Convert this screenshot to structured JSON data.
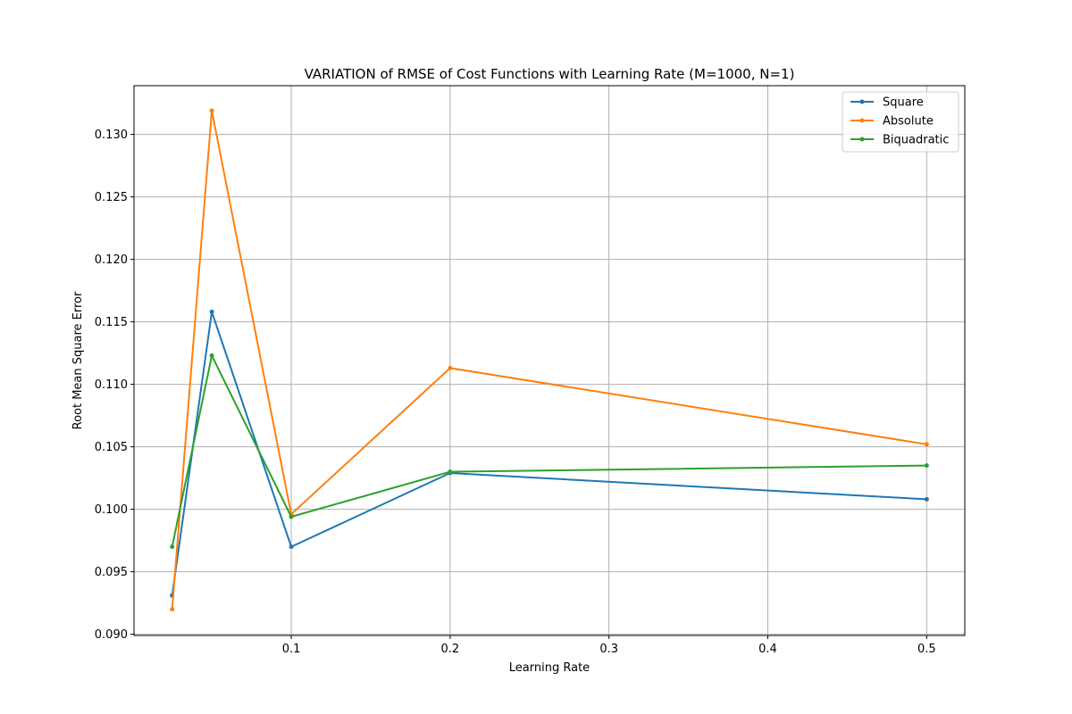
{
  "chart_data": {
    "type": "line",
    "title": "VARIATION of RMSE of Cost Functions with Learning Rate (M=1000, N=1)",
    "xlabel": "Learning Rate",
    "ylabel": "Root Mean Square Error",
    "x": [
      0.025,
      0.05,
      0.1,
      0.2,
      0.5
    ],
    "xlim": [
      0.001,
      0.524
    ],
    "ylim": [
      0.0899,
      0.1339
    ],
    "x_ticks": [
      0.1,
      0.2,
      0.3,
      0.4,
      0.5
    ],
    "x_tick_labels": [
      "0.1",
      "0.2",
      "0.3",
      "0.4",
      "0.5"
    ],
    "y_ticks": [
      0.09,
      0.095,
      0.1,
      0.105,
      0.11,
      0.115,
      0.12,
      0.125,
      0.13
    ],
    "y_tick_labels": [
      "0.090",
      "0.095",
      "0.100",
      "0.105",
      "0.110",
      "0.115",
      "0.120",
      "0.125",
      "0.130"
    ],
    "grid": true,
    "legend_position": "top-right",
    "series": [
      {
        "name": "Square",
        "color": "#1f77b4",
        "values": [
          0.0931,
          0.1158,
          0.097,
          0.1029,
          0.1008
        ]
      },
      {
        "name": "Absolute",
        "color": "#ff7f0e",
        "values": [
          0.092,
          0.1319,
          0.0996,
          0.1113,
          0.1052
        ]
      },
      {
        "name": "Biquadratic",
        "color": "#2ca02c",
        "values": [
          0.097,
          0.1123,
          0.0994,
          0.103,
          0.1035
        ]
      }
    ]
  }
}
